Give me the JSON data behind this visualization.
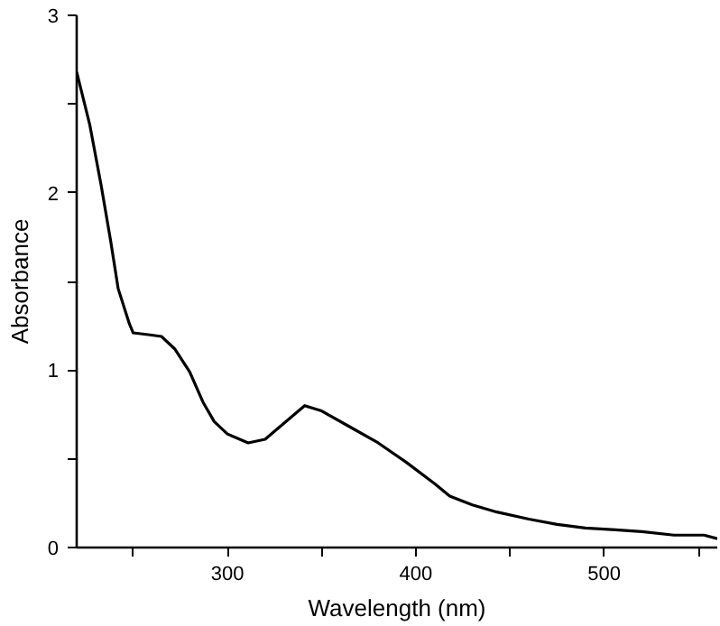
{
  "chart_data": {
    "type": "line",
    "xlabel": "Wavelength (nm)",
    "ylabel": "Absorbance",
    "x": [
      220,
      227,
      233,
      238,
      242,
      248,
      250,
      258,
      265,
      272,
      280,
      287,
      293,
      300,
      311,
      320,
      330,
      341,
      350,
      365,
      380,
      395,
      410,
      418,
      430,
      443,
      460,
      475,
      490,
      506,
      520,
      537,
      553,
      560
    ],
    "series": [
      {
        "color": "#000000",
        "values": [
          2.68,
          2.38,
          2.04,
          1.73,
          1.46,
          1.26,
          1.21,
          1.2,
          1.19,
          1.12,
          0.99,
          0.82,
          0.71,
          0.64,
          0.59,
          0.61,
          0.7,
          0.8,
          0.77,
          0.68,
          0.59,
          0.48,
          0.36,
          0.29,
          0.24,
          0.2,
          0.16,
          0.13,
          0.11,
          0.1,
          0.09,
          0.07,
          0.07,
          0.05
        ]
      }
    ],
    "xlim": [
      220,
      560
    ],
    "ylim": [
      0,
      3
    ],
    "xticks": [
      {
        "value": 250,
        "label": null
      },
      300,
      {
        "value": 350,
        "label": null
      },
      400,
      {
        "value": 450,
        "label": null
      },
      500,
      {
        "value": 550,
        "label": null
      }
    ],
    "yticks": [
      0,
      {
        "value": 0.5,
        "label": null
      },
      1,
      {
        "value": 1.5,
        "label": null
      },
      2,
      {
        "value": 2.5,
        "label": null
      },
      3
    ],
    "grid": false,
    "line_style": "solid"
  }
}
